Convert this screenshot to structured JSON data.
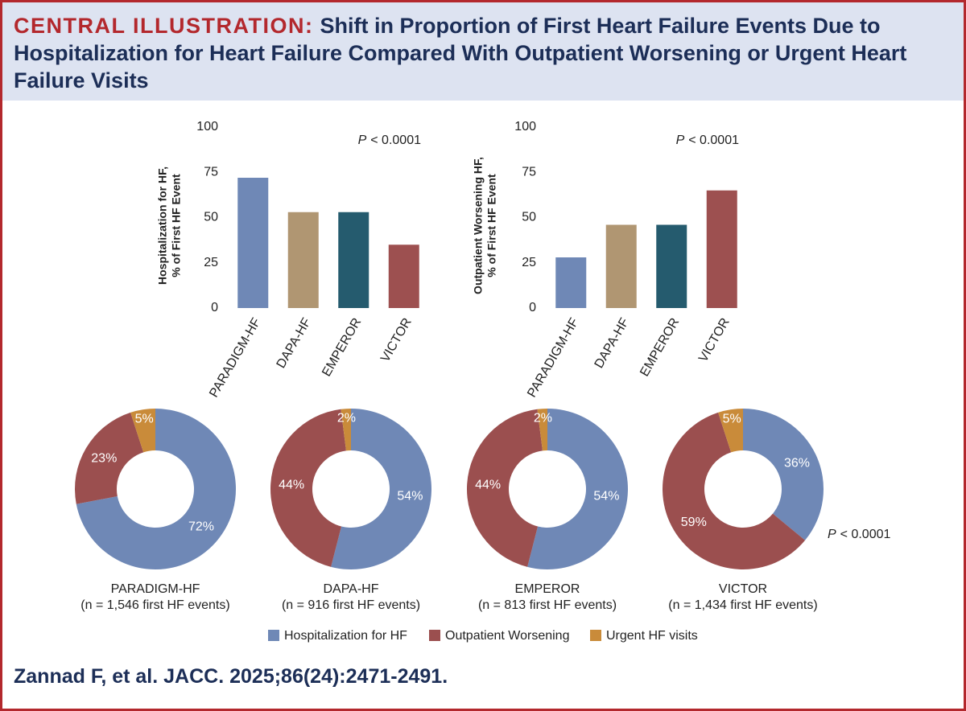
{
  "header": {
    "label": "CENTRAL ILLUSTRATION:",
    "title": "Shift in Proportion of First Heart Failure Events Due to Hospitalization for Heart Failure Compared With Outpatient Worsening or Urgent Heart Failure Visits"
  },
  "chart_data": [
    {
      "type": "bar",
      "ylabel": [
        "Hospitalization for HF,",
        "% of First HF Event"
      ],
      "categories": [
        "PARADIGM-HF",
        "DAPA-HF",
        "EMPEROR",
        "VICTOR"
      ],
      "values": [
        72,
        53,
        53,
        35
      ],
      "colors": [
        "#6f88b6",
        "#b09672",
        "#255b6e",
        "#9d5050"
      ],
      "ylim": [
        0,
        100
      ],
      "yticks": [
        0,
        25,
        50,
        75,
        100
      ],
      "annotation": {
        "symbol": "P",
        "text": "< 0.0001"
      }
    },
    {
      "type": "bar",
      "ylabel": [
        "Outpatient Worsening HF,",
        "% of First HF Event"
      ],
      "categories": [
        "PARADIGM-HF",
        "DAPA-HF",
        "EMPEROR",
        "VICTOR"
      ],
      "values": [
        28,
        46,
        46,
        65
      ],
      "colors": [
        "#6f88b6",
        "#b09672",
        "#255b6e",
        "#9d5050"
      ],
      "ylim": [
        0,
        100
      ],
      "yticks": [
        0,
        25,
        50,
        75,
        100
      ],
      "annotation": {
        "symbol": "P",
        "text": "< 0.0001"
      }
    },
    {
      "type": "pie",
      "donut": true,
      "title": "PARADIGM-HF",
      "subtitle": "(n = 1,546 first HF events)",
      "values": [
        72,
        23,
        5
      ],
      "value_labels": [
        "72%",
        "23%",
        "5%"
      ]
    },
    {
      "type": "pie",
      "donut": true,
      "title": "DAPA-HF",
      "subtitle": "(n = 916 first HF events)",
      "values": [
        54,
        44,
        2
      ],
      "value_labels": [
        "54%",
        "44%",
        "2%"
      ]
    },
    {
      "type": "pie",
      "donut": true,
      "title": "EMPEROR",
      "subtitle": "(n = 813 first HF events)",
      "values": [
        54,
        44,
        2
      ],
      "value_labels": [
        "54%",
        "44%",
        "2%"
      ]
    },
    {
      "type": "pie",
      "donut": true,
      "title": "VICTOR",
      "subtitle": "(n = 1,434 first HF events)",
      "values": [
        36,
        59,
        5
      ],
      "value_labels": [
        "36%",
        "59%",
        "5%"
      ],
      "annotation": {
        "symbol": "P",
        "text": "< 0.0001"
      }
    }
  ],
  "legend": [
    {
      "name": "Hospitalization for HF",
      "color": "#6f88b6"
    },
    {
      "name": "Outpatient Worsening",
      "color": "#9b4f4f"
    },
    {
      "name": "Urgent HF visits",
      "color": "#c98b3a"
    }
  ],
  "citation": "Zannad F, et al. JACC. 2025;86(24):2471-2491."
}
